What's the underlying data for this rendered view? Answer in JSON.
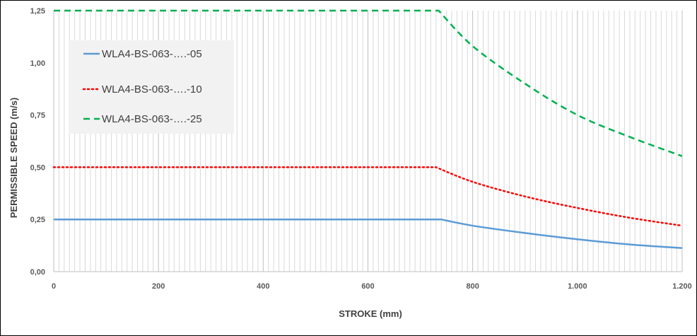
{
  "chart_data": {
    "type": "line",
    "xlabel": "STROKE (mm)",
    "ylabel": "PERMISSIBLE SPEED (m/s)",
    "xlim": [
      0,
      1200
    ],
    "ylim": [
      0,
      1.25
    ],
    "x_ticks": [
      0,
      200,
      400,
      600,
      800,
      1000,
      1200
    ],
    "x_tick_labels": [
      "0",
      "200",
      "400",
      "600",
      "800",
      "1.000",
      "1.200"
    ],
    "y_ticks": [
      0,
      0.25,
      0.5,
      0.75,
      1.0,
      1.25
    ],
    "y_tick_labels": [
      "0,00",
      "0,25",
      "0,50",
      "0,75",
      "1,00",
      "1,25"
    ],
    "grid": "vertical",
    "legend_position": "top-left",
    "series": [
      {
        "name": "WLA4-BS-063-….-05",
        "color": "#5b9bd5",
        "style": "solid",
        "x": [
          0,
          740,
          800,
          900,
          1000,
          1100,
          1200
        ],
        "y": [
          0.25,
          0.25,
          0.22,
          0.185,
          0.155,
          0.13,
          0.113
        ]
      },
      {
        "name": "WLA4-BS-063-….-10",
        "color": "#ff0000",
        "style": "dotted",
        "x": [
          0,
          730,
          800,
          900,
          1000,
          1100,
          1200
        ],
        "y": [
          0.5,
          0.5,
          0.43,
          0.36,
          0.305,
          0.258,
          0.22
        ]
      },
      {
        "name": "WLA4-BS-063-….-25",
        "color": "#00b050",
        "style": "dashed",
        "x": [
          0,
          735,
          800,
          900,
          1000,
          1100,
          1200
        ],
        "y": [
          1.25,
          1.25,
          1.08,
          0.9,
          0.75,
          0.645,
          0.553
        ]
      }
    ]
  }
}
